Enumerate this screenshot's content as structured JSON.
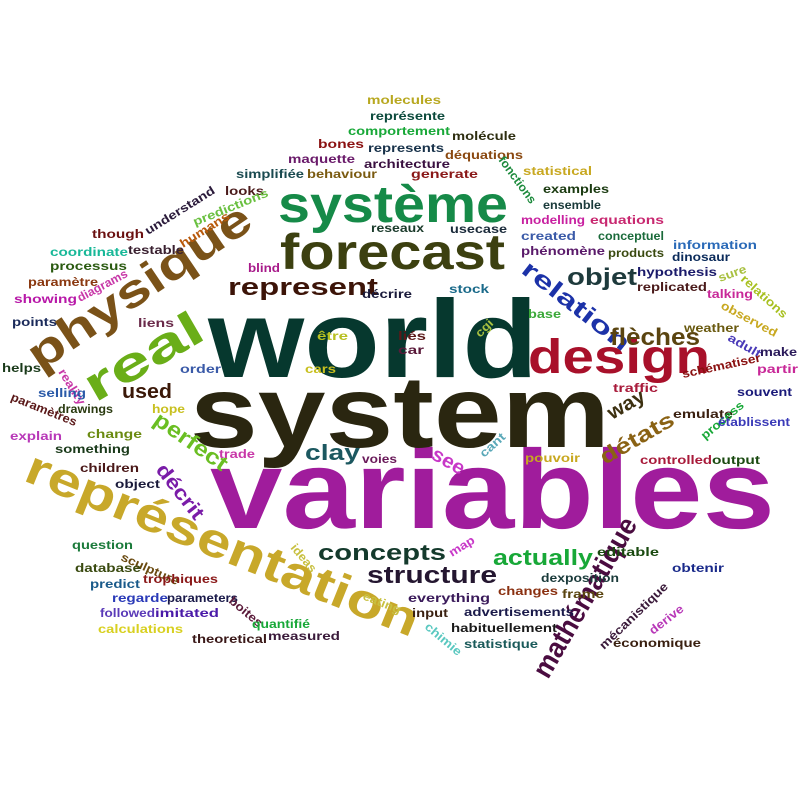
{
  "words": [
    {
      "text": "variables",
      "color": "#a01c9c"
    },
    {
      "text": "system",
      "color": "#2a2610"
    },
    {
      "text": "world",
      "color": "#06382e"
    },
    {
      "text": "représentation",
      "color": "#c8a82a"
    },
    {
      "text": "forecast",
      "color": "#3c4010"
    },
    {
      "text": "système",
      "color": "#168a48"
    },
    {
      "text": "physique",
      "color": "#7a5218"
    },
    {
      "text": "design",
      "color": "#a8102a"
    },
    {
      "text": "real",
      "color": "#6aae18"
    },
    {
      "text": "mathématique",
      "color": "#4a0c40"
    },
    {
      "text": "represent",
      "color": "#3c1408"
    },
    {
      "text": "structure",
      "color": "#241630"
    },
    {
      "text": "concepts",
      "color": "#143a2c"
    },
    {
      "text": "relation",
      "color": "#1c32a8"
    },
    {
      "text": "flèches",
      "color": "#5a4410"
    },
    {
      "text": "objet",
      "color": "#1e3a3c"
    },
    {
      "text": "actually",
      "color": "#18a838"
    },
    {
      "text": "perfect",
      "color": "#6abe22"
    },
    {
      "text": "décrit",
      "color": "#7a1ca8"
    },
    {
      "text": "détats",
      "color": "#8a6214"
    },
    {
      "text": "clay",
      "color": "#1c5860"
    },
    {
      "text": "way",
      "color": "#3c3010"
    },
    {
      "text": "used",
      "color": "#3a1808"
    },
    {
      "text": "see",
      "color": "#c838c8"
    },
    {
      "text": "molecules",
      "color": "#b8a820"
    },
    {
      "text": "représente",
      "color": "#0c4a3c"
    },
    {
      "text": "comportement",
      "color": "#18a838"
    },
    {
      "text": "molécule",
      "color": "#2e2e10"
    },
    {
      "text": "bones",
      "color": "#8a1010"
    },
    {
      "text": "represents",
      "color": "#18324a"
    },
    {
      "text": "déquations",
      "color": "#8a4810"
    },
    {
      "text": "maquette",
      "color": "#6a1a6a"
    },
    {
      "text": "architecture",
      "color": "#3a1040"
    },
    {
      "text": "simplifiée",
      "color": "#1a4a50"
    },
    {
      "text": "behaviour",
      "color": "#7a5a10"
    },
    {
      "text": "generate",
      "color": "#8a1818"
    },
    {
      "text": "statistical",
      "color": "#c8a820"
    },
    {
      "text": "fonctions",
      "color": "#1c8a3c"
    },
    {
      "text": "examples",
      "color": "#1a3a10"
    },
    {
      "text": "looks",
      "color": "#4a1a1a"
    },
    {
      "text": "understand",
      "color": "#2a1a3a"
    },
    {
      "text": "predictions",
      "color": "#6ac040"
    },
    {
      "text": "ensemble",
      "color": "#1a3a3a"
    },
    {
      "text": "modelling",
      "color": "#c820a0"
    },
    {
      "text": "equations",
      "color": "#c82870"
    },
    {
      "text": "though",
      "color": "#6a1010"
    },
    {
      "text": "humans",
      "color": "#b8580a"
    },
    {
      "text": "usecase",
      "color": "#1a2a3a"
    },
    {
      "text": "created",
      "color": "#3a5aa8"
    },
    {
      "text": "conceptuel",
      "color": "#1a6a3a"
    },
    {
      "text": "information",
      "color": "#2a6ab8"
    },
    {
      "text": "coordinate",
      "color": "#18b898"
    },
    {
      "text": "testable",
      "color": "#3a2030"
    },
    {
      "text": "phénomène",
      "color": "#5a1a6a"
    },
    {
      "text": "products",
      "color": "#3a4a10"
    },
    {
      "text": "dinosaur",
      "color": "#0a2a5a"
    },
    {
      "text": "processus",
      "color": "#2a5a10"
    },
    {
      "text": "blind",
      "color": "#a81a8a"
    },
    {
      "text": "hypothesis",
      "color": "#1a1a6a"
    },
    {
      "text": "replicated",
      "color": "#4a1a1a"
    },
    {
      "text": "paramètre",
      "color": "#8a3810"
    },
    {
      "text": "diagrams",
      "color": "#c838a8"
    },
    {
      "text": "sure",
      "color": "#a8c040"
    },
    {
      "text": "talking",
      "color": "#c82898"
    },
    {
      "text": "showing",
      "color": "#b818a8"
    },
    {
      "text": "décrire",
      "color": "#1a1a3a"
    },
    {
      "text": "stock",
      "color": "#1a6a8a"
    },
    {
      "text": "relations",
      "color": "#a8c020"
    },
    {
      "text": "points",
      "color": "#1a2a5a"
    },
    {
      "text": "liens",
      "color": "#6a2a4a"
    },
    {
      "text": "base",
      "color": "#3aa838"
    },
    {
      "text": "observed",
      "color": "#c8a820"
    },
    {
      "text": "weather",
      "color": "#6a5a10"
    },
    {
      "text": "être",
      "color": "#b8c020"
    },
    {
      "text": "liés",
      "color": "#5a1818"
    },
    {
      "text": "cgi",
      "color": "#a8c040"
    },
    {
      "text": "car",
      "color": "#5a1a3a"
    },
    {
      "text": "adult",
      "color": "#4a3ab8"
    },
    {
      "text": "make",
      "color": "#2a1a5a"
    },
    {
      "text": "helps",
      "color": "#1a3a1a"
    },
    {
      "text": "order",
      "color": "#3a5aa8"
    },
    {
      "text": "cars",
      "color": "#c8c020"
    },
    {
      "text": "reality",
      "color": "#c838a8"
    },
    {
      "text": "partir",
      "color": "#c82898"
    },
    {
      "text": "schématiser",
      "color": "#8a1010"
    },
    {
      "text": "selling",
      "color": "#2a5aa8"
    },
    {
      "text": "traffic",
      "color": "#a81a3a"
    },
    {
      "text": "souvent",
      "color": "#1a1a7a"
    },
    {
      "text": "paramètres",
      "color": "#5a1818"
    },
    {
      "text": "drawings",
      "color": "#2a3a10"
    },
    {
      "text": "hope",
      "color": "#c8c020"
    },
    {
      "text": "emulate",
      "color": "#3a2010"
    },
    {
      "text": "process",
      "color": "#18a838"
    },
    {
      "text": "établissent",
      "color": "#3a3ab8"
    },
    {
      "text": "explain",
      "color": "#b838b8"
    },
    {
      "text": "change",
      "color": "#6a8a10"
    },
    {
      "text": "something",
      "color": "#1a3a1a"
    },
    {
      "text": "children",
      "color": "#4a1818"
    },
    {
      "text": "trade",
      "color": "#c838a8"
    },
    {
      "text": "cant",
      "color": "#5aa8b8"
    },
    {
      "text": "voies",
      "color": "#6a1a5a"
    },
    {
      "text": "pouvoir",
      "color": "#c8a820"
    },
    {
      "text": "controlled",
      "color": "#a81a3a"
    },
    {
      "text": "output",
      "color": "#1a4a10"
    },
    {
      "text": "object",
      "color": "#1a1a3a"
    },
    {
      "text": "question",
      "color": "#1a7a3a"
    },
    {
      "text": "sculpture",
      "color": "#6a4a10"
    },
    {
      "text": "ideas",
      "color": "#c8c040"
    },
    {
      "text": "map",
      "color": "#c838c8"
    },
    {
      "text": "database",
      "color": "#3a4a10"
    },
    {
      "text": "trophiques",
      "color": "#8a1818"
    },
    {
      "text": "predict",
      "color": "#1a5a8a"
    },
    {
      "text": "regarde",
      "color": "#2a3ab8"
    },
    {
      "text": "parameters",
      "color": "#1a1a4a"
    },
    {
      "text": "followed",
      "color": "#5a3ab8"
    },
    {
      "text": "imitated",
      "color": "#4a1aa8"
    },
    {
      "text": "calculations",
      "color": "#d8d020"
    },
    {
      "text": "boites",
      "color": "#5a1a3a"
    },
    {
      "text": "quantifié",
      "color": "#18a838"
    },
    {
      "text": "theoretical",
      "color": "#3a1818"
    },
    {
      "text": "measured",
      "color": "#3a1a3a"
    },
    {
      "text": "eating",
      "color": "#c8c040"
    },
    {
      "text": "input",
      "color": "#3a2010"
    },
    {
      "text": "everything",
      "color": "#3a1a5a"
    },
    {
      "text": "changes",
      "color": "#8a3010"
    },
    {
      "text": "frame",
      "color": "#5a4410"
    },
    {
      "text": "dexposition",
      "color": "#1a3a3a"
    },
    {
      "text": "editable",
      "color": "#1a4a10"
    },
    {
      "text": "obtenir",
      "color": "#1a2a8a"
    },
    {
      "text": "mécanistique",
      "color": "#3a1a3a"
    },
    {
      "text": "advertisements",
      "color": "#1a1a4a"
    },
    {
      "text": "habituellement",
      "color": "#1a1a1a"
    },
    {
      "text": "statistique",
      "color": "#1a5a5a"
    },
    {
      "text": "chimie",
      "color": "#5ac8c0"
    },
    {
      "text": "derive",
      "color": "#b838b8"
    },
    {
      "text": "économique",
      "color": "#3a2010"
    },
    {
      "text": "reseaux",
      "color": "#1a3a2a"
    }
  ]
}
